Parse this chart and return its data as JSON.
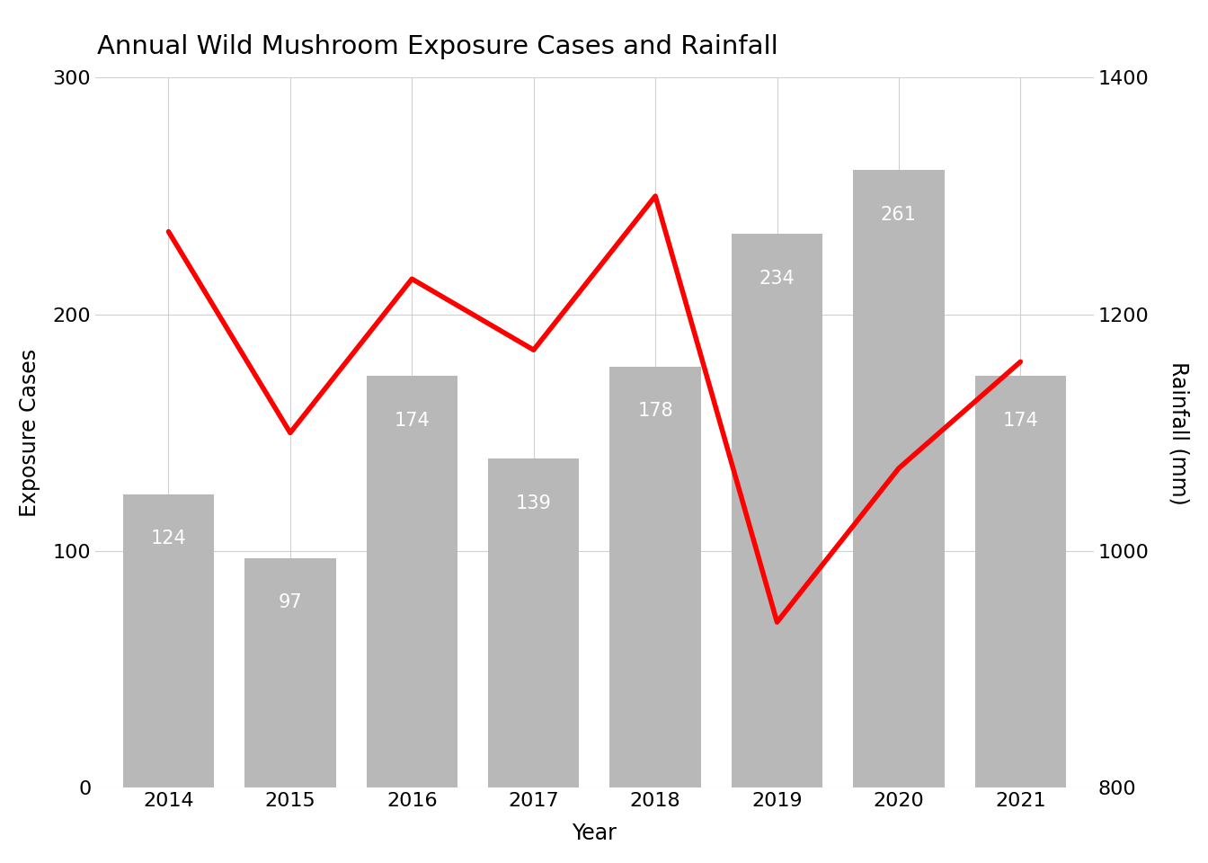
{
  "title": "Annual Wild Mushroom Exposure Cases and Rainfall",
  "years": [
    2014,
    2015,
    2016,
    2017,
    2018,
    2019,
    2020,
    2021
  ],
  "exposure_cases": [
    124,
    97,
    174,
    139,
    178,
    234,
    261,
    174
  ],
  "rainfall_mm": [
    1270,
    1100,
    1230,
    1170,
    1300,
    940,
    1070,
    1160
  ],
  "bar_color": "#b8b8b8",
  "line_color": "#ff0000",
  "bar_label_color": "#ffffff",
  "background_color": "#ffffff",
  "left_ylabel": "Exposure Cases",
  "right_ylabel": "Rainfall (mm)",
  "xlabel": "Year",
  "left_ylim": [
    0,
    300
  ],
  "right_ylim": [
    800,
    1400
  ],
  "left_yticks": [
    0,
    100,
    200,
    300
  ],
  "right_yticks": [
    800,
    1000,
    1200,
    1400
  ],
  "title_fontsize": 21,
  "axis_label_fontsize": 17,
  "tick_fontsize": 16,
  "bar_label_fontsize": 15,
  "line_width": 4.0,
  "grid_color": "#d0d0d0",
  "grid_alpha": 1.0,
  "bar_width": 0.75
}
